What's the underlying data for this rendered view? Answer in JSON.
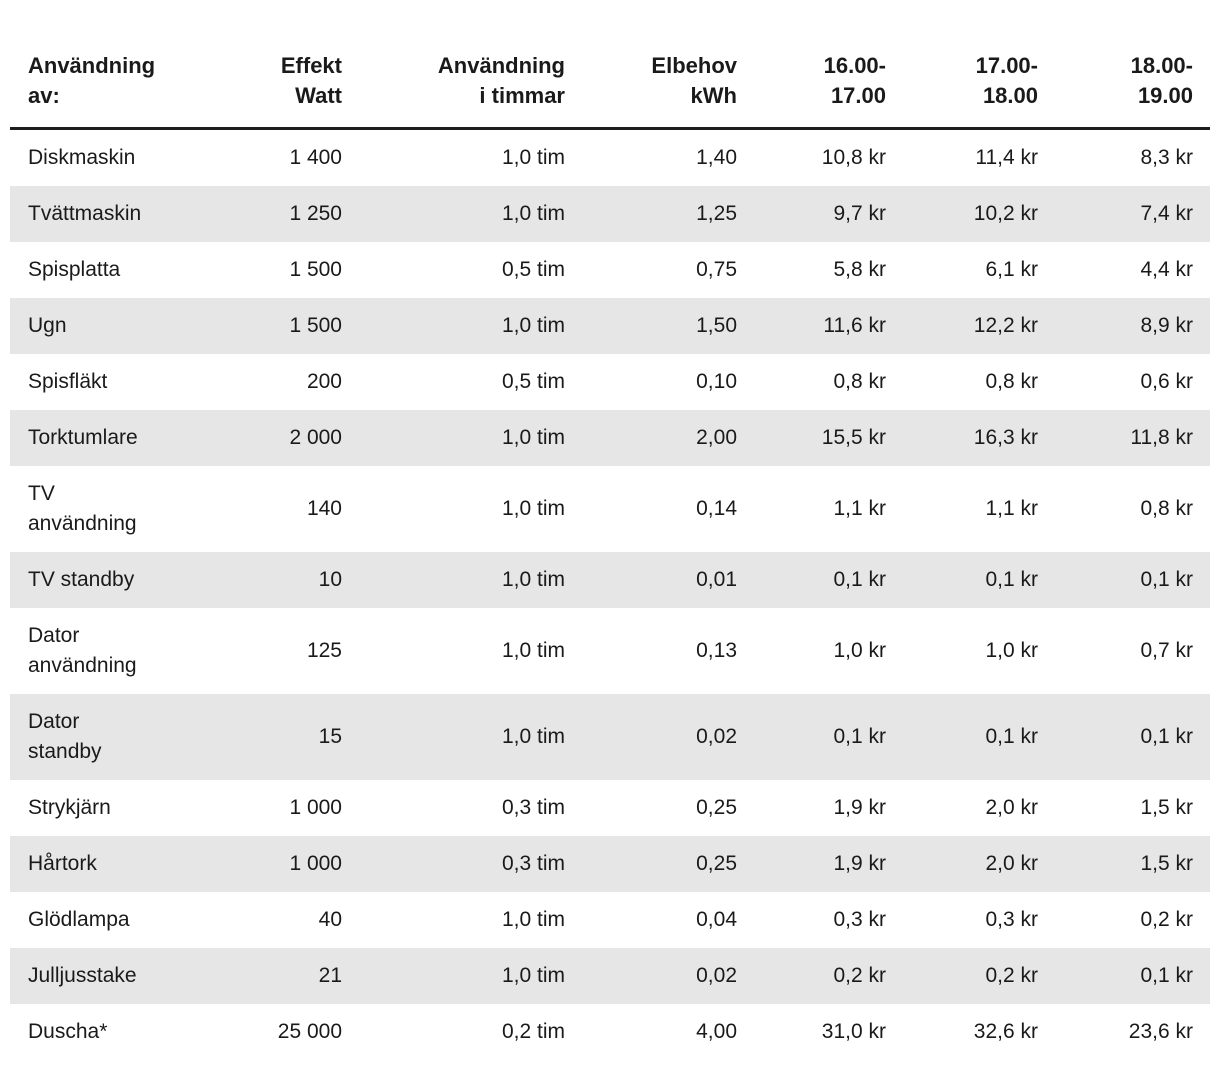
{
  "chart_data": {
    "type": "table",
    "title": "",
    "columns": [
      "Användning\nav:",
      "Effekt\nWatt",
      "Användning\ni timmar",
      "Elbehov\nkWh",
      "16.00-\n17.00",
      "17.00-\n18.00",
      "18.00-\n19.00"
    ],
    "rows": [
      [
        "Diskmaskin",
        "1 400",
        "1,0 tim",
        "1,40",
        "10,8 kr",
        "11,4 kr",
        "8,3 kr"
      ],
      [
        "Tvättmaskin",
        "1 250",
        "1,0 tim",
        "1,25",
        "9,7 kr",
        "10,2 kr",
        "7,4 kr"
      ],
      [
        "Spisplatta",
        "1 500",
        "0,5 tim",
        "0,75",
        "5,8 kr",
        "6,1 kr",
        "4,4 kr"
      ],
      [
        "Ugn",
        "1 500",
        "1,0 tim",
        "1,50",
        "11,6 kr",
        "12,2 kr",
        "8,9 kr"
      ],
      [
        "Spisfläkt",
        "200",
        "0,5 tim",
        "0,10",
        "0,8 kr",
        "0,8 kr",
        "0,6 kr"
      ],
      [
        "Torktumlare",
        "2 000",
        "1,0 tim",
        "2,00",
        "15,5 kr",
        "16,3 kr",
        "11,8 kr"
      ],
      [
        "TV\nanvändning",
        "140",
        "1,0 tim",
        "0,14",
        "1,1 kr",
        "1,1 kr",
        "0,8 kr"
      ],
      [
        "TV standby",
        "10",
        "1,0 tim",
        "0,01",
        "0,1 kr",
        "0,1 kr",
        "0,1 kr"
      ],
      [
        "Dator\nanvändning",
        "125",
        "1,0 tim",
        "0,13",
        "1,0 kr",
        "1,0 kr",
        "0,7 kr"
      ],
      [
        "Dator\nstandby",
        "15",
        "1,0 tim",
        "0,02",
        "0,1 kr",
        "0,1 kr",
        "0,1 kr"
      ],
      [
        "Strykjärn",
        "1 000",
        "0,3 tim",
        "0,25",
        "1,9 kr",
        "2,0 kr",
        "1,5 kr"
      ],
      [
        "Hårtork",
        "1 000",
        "0,3 tim",
        "0,25",
        "1,9 kr",
        "2,0 kr",
        "1,5 kr"
      ],
      [
        "Glödlampa",
        "40",
        "1,0 tim",
        "0,04",
        "0,3 kr",
        "0,3 kr",
        "0,2 kr"
      ],
      [
        "Julljusstake",
        "21",
        "1,0 tim",
        "0,02",
        "0,2 kr",
        "0,2 kr",
        "0,1 kr"
      ],
      [
        "Duscha*",
        "25 000",
        "0,2 tim",
        "4,00",
        "31,0 kr",
        "32,6 kr",
        "23,6 kr"
      ]
    ]
  },
  "colors": {
    "text": "#1a1a1a",
    "row_alt_background": "#e6e6e6",
    "header_rule": "#1d1d1d",
    "page_background": "#ffffff"
  }
}
